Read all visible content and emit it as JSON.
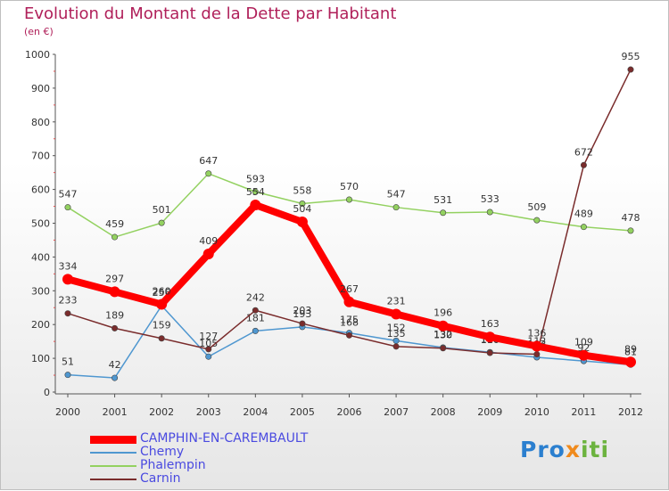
{
  "chart_data": {
    "type": "line",
    "title": "Evolution du Montant de la Dette par Habitant",
    "subtitle": "(en €)",
    "xlabel": "",
    "ylabel": "",
    "ylim": [
      0,
      1000
    ],
    "yticks": [
      0,
      100,
      200,
      300,
      400,
      500,
      600,
      700,
      800,
      900,
      1000
    ],
    "grid": false,
    "legend_position": "bottom-left",
    "x": [
      "2000",
      "2001",
      "2002",
      "2003",
      "2004",
      "2005",
      "2006",
      "2007",
      "2008",
      "2009",
      "2010",
      "2011",
      "2012"
    ],
    "series": [
      {
        "name": "CAMPHIN-EN-CAREMBAULT",
        "color": "#ff0000",
        "emphasis": true,
        "values": [
          334,
          297,
          260,
          409,
          554,
          504,
          267,
          231,
          196,
          163,
          136,
          109,
          89
        ],
        "labels": [
          "334",
          "297",
          "260",
          "409",
          "554",
          "504",
          "267",
          "231",
          "196",
          "163",
          "136",
          "109",
          "89"
        ]
      },
      {
        "name": "Chemy",
        "color": "#4f97d0",
        "emphasis": false,
        "values": [
          51,
          42,
          256,
          105,
          181,
          193,
          175,
          152,
          132,
          118,
          103,
          92,
          81
        ],
        "labels": [
          "51",
          "42",
          "256",
          "105",
          "181",
          "193",
          "175",
          "152",
          "132",
          "118",
          "103",
          "92",
          "81"
        ]
      },
      {
        "name": "Phalempin",
        "color": "#93d160",
        "emphasis": false,
        "values": [
          547,
          459,
          501,
          647,
          593,
          558,
          570,
          547,
          531,
          533,
          509,
          489,
          478
        ],
        "labels": [
          "547",
          "459",
          "501",
          "647",
          "593",
          "558",
          "570",
          "547",
          "531",
          "533",
          "509",
          "489",
          "478"
        ]
      },
      {
        "name": "Carnin",
        "color": "#7a2c2c",
        "emphasis": false,
        "values": [
          233,
          189,
          159,
          127,
          242,
          203,
          168,
          135,
          130,
          116,
          112,
          672,
          955
        ],
        "labels": [
          "233",
          "189",
          "159",
          "127",
          "242",
          "203",
          "168",
          "135",
          "130",
          "116",
          "112",
          "672",
          "955"
        ]
      }
    ]
  },
  "brand": {
    "p1": "Pro",
    "p2": "x",
    "p3": "iti"
  }
}
